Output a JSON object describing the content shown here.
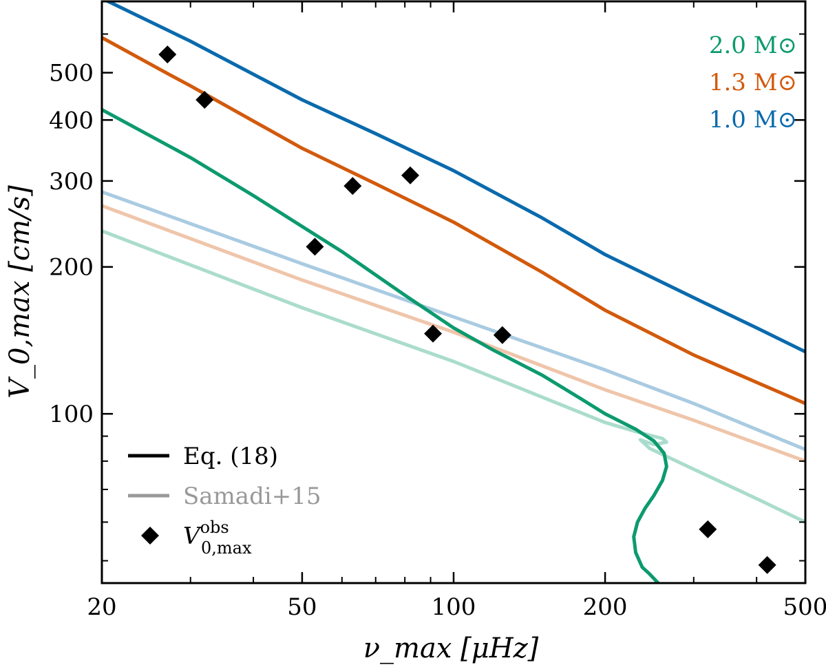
{
  "chart_data": {
    "type": "line",
    "title": "",
    "xlabel": "ν_max [μHz]",
    "ylabel": "V_0,max [cm/s]",
    "xscale": "log",
    "yscale": "log",
    "xlim": [
      20,
      500
    ],
    "ylim": [
      45,
      700
    ],
    "xticks": [
      20,
      50,
      100,
      200,
      500
    ],
    "yticks": [
      100,
      200,
      300,
      400,
      500
    ],
    "grid": false,
    "colors": {
      "m10": "#0a6aad",
      "m13": "#d25a0c",
      "m20": "#0c9a6e",
      "obs": "#000000"
    },
    "mass_labels": [
      {
        "id": "m20",
        "text": "2.0 M⊙",
        "color": "#0c9a6e"
      },
      {
        "id": "m13",
        "text": "1.3 M⊙",
        "color": "#d25a0c"
      },
      {
        "id": "m10",
        "text": "1.0 M⊙",
        "color": "#0a6aad"
      }
    ],
    "legend": {
      "position": "bottom-left",
      "entries": [
        {
          "label": "Eq. (18)",
          "kind": "line",
          "color": "#000000"
        },
        {
          "label": "Samadi+15",
          "kind": "line-faint",
          "color": "#999999"
        },
        {
          "label": "V",
          "sup": "obs",
          "sub": "0,max",
          "kind": "marker",
          "color": "#000000"
        }
      ]
    },
    "series": [
      {
        "name": "1.0 M⊙ Eq. (18)",
        "group": "m10",
        "style": "solid",
        "x": [
          20,
          30,
          50,
          70,
          100,
          150,
          200,
          300,
          400,
          500
        ],
        "y": [
          710,
          580,
          440,
          375,
          315,
          252,
          212,
          173,
          150,
          134
        ]
      },
      {
        "name": "1.3 M⊙ Eq. (18)",
        "group": "m13",
        "style": "solid",
        "x": [
          20,
          27,
          30,
          50,
          70,
          100,
          150,
          200,
          300,
          400,
          500
        ],
        "y": [
          590,
          498,
          470,
          350,
          296,
          247,
          195,
          163,
          132,
          116,
          105
        ]
      },
      {
        "name": "2.0 M⊙ Eq. (18)",
        "group": "m20",
        "style": "solid",
        "x": [
          20,
          30,
          40,
          50,
          60,
          80,
          100,
          120,
          150,
          180,
          200,
          230,
          250,
          262,
          265,
          260,
          250,
          240,
          232,
          228,
          230,
          237,
          245,
          255
        ],
        "y": [
          420,
          335,
          280,
          242,
          215,
          175,
          150,
          135,
          120,
          107,
          100,
          93,
          88,
          83,
          78,
          73,
          68,
          64,
          60,
          56,
          52,
          48.5,
          47,
          45
        ]
      },
      {
        "name": "1.0 M⊙ Samadi+15",
        "group": "m10",
        "style": "faint",
        "x": [
          20,
          50,
          100,
          200,
          300,
          500
        ],
        "y": [
          285,
          203,
          158,
          123,
          105,
          84.5
        ]
      },
      {
        "name": "1.3 M⊙ Samadi+15",
        "group": "m13",
        "style": "faint",
        "x": [
          20,
          50,
          100,
          200,
          300,
          500
        ],
        "y": [
          267,
          188,
          147,
          112,
          97,
          80
        ]
      },
      {
        "name": "2.0 M⊙ Samadi+15",
        "group": "m20",
        "style": "faint",
        "x": [
          20,
          50,
          100,
          200,
          230,
          260,
          265,
          250,
          235,
          245,
          300,
          400,
          500
        ],
        "y": [
          237,
          165,
          128,
          96,
          92,
          89,
          87.5,
          86.5,
          88.5,
          85,
          77,
          67,
          60
        ]
      }
    ],
    "observations": {
      "name": "V_0,max^obs",
      "x": [
        27,
        32,
        53,
        63,
        82,
        91,
        125,
        320,
        420
      ],
      "y": [
        545,
        440,
        220,
        293,
        308,
        146,
        145,
        58,
        49
      ]
    }
  }
}
